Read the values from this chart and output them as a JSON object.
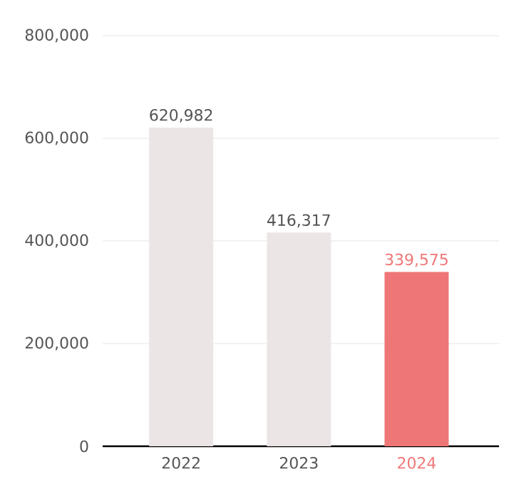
{
  "chart_data": {
    "type": "bar",
    "categories": [
      "2022",
      "2023",
      "2024"
    ],
    "values": [
      620982,
      416317,
      339575
    ],
    "colors": [
      "#ece5e5",
      "#ece5e5",
      "#ef7677"
    ],
    "value_labels": [
      "620,982",
      "416,317",
      "339,575"
    ],
    "ylim": [
      0,
      800000
    ],
    "yticks": [
      {
        "value": 0,
        "label": "0"
      },
      {
        "value": 200000,
        "label": "200,000"
      },
      {
        "value": 400000,
        "label": "400,000"
      },
      {
        "value": 600000,
        "label": "600,000"
      },
      {
        "value": 800000,
        "label": "800,000"
      }
    ],
    "grid": "y"
  }
}
